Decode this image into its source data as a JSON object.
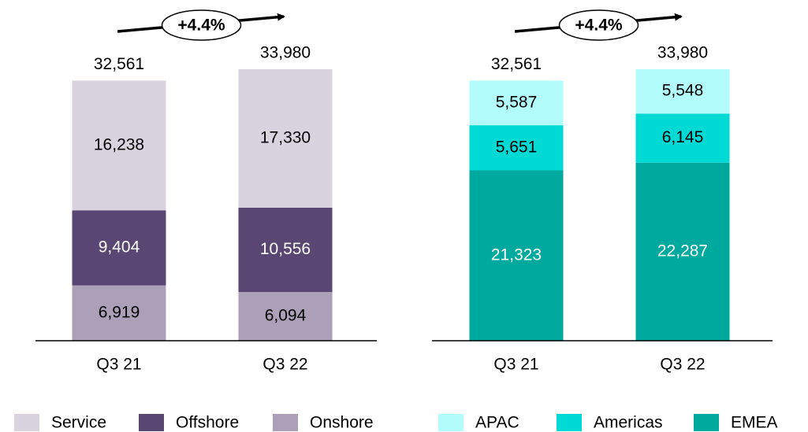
{
  "chart_data": [
    {
      "type": "stacked_bar",
      "annotation": "+4.4%",
      "categories": [
        "Q3 21",
        "Q3 22"
      ],
      "series": [
        {
          "name": "Service",
          "color": "#d9d3e0",
          "label_color": "#000000",
          "values": [
            16238,
            17330
          ],
          "value_labels": [
            "16,238",
            "17,330"
          ]
        },
        {
          "name": "Offshore",
          "color": "#5a4672",
          "label_color": "#ffffff",
          "values": [
            9404,
            10556
          ],
          "value_labels": [
            "9,404",
            "10,556"
          ]
        },
        {
          "name": "Onshore",
          "color": "#aba0b8",
          "label_color": "#000000",
          "values": [
            6919,
            6094
          ],
          "value_labels": [
            "6,919",
            "6,094"
          ]
        }
      ],
      "totals": [
        32561,
        33980
      ],
      "total_labels": [
        "32,561",
        "33,980"
      ]
    },
    {
      "type": "stacked_bar",
      "annotation": "+4.4%",
      "categories": [
        "Q3 21",
        "Q3 22"
      ],
      "series": [
        {
          "name": "APAC",
          "color": "#b3fcfc",
          "label_color": "#000000",
          "values": [
            5587,
            5548
          ],
          "value_labels": [
            "5,587",
            "5,548"
          ]
        },
        {
          "name": "Americas",
          "color": "#00d9d4",
          "label_color": "#000000",
          "values": [
            5651,
            6145
          ],
          "value_labels": [
            "5,651",
            "6,145"
          ]
        },
        {
          "name": "EMEA",
          "color": "#00a99d",
          "label_color": "#ffffff",
          "values": [
            21323,
            22287
          ],
          "value_labels": [
            "21,323",
            "22,287"
          ]
        }
      ],
      "totals": [
        32561,
        33980
      ],
      "total_labels": [
        "32,561",
        "33,980"
      ]
    }
  ]
}
